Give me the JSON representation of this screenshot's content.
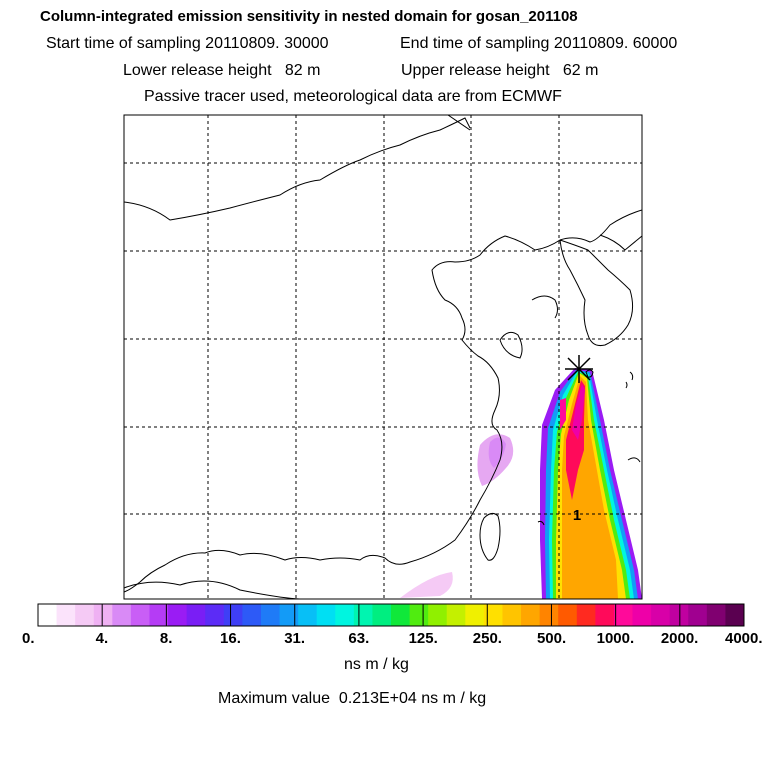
{
  "header": {
    "title": "Column-integrated emission sensitivity in nested domain for gosan_201108",
    "start_time": "Start time of sampling 20110809. 30000",
    "end_time": "End time of sampling 20110809. 60000",
    "lower_release": "Lower release height   82 m",
    "upper_release": "Upper release height   62 m",
    "tracer_note": "Passive tracer used, meteorological data are from ECMWF"
  },
  "map": {
    "release_marker_label": "1",
    "colors": {
      "coast": "#000000",
      "grid": "#000000"
    }
  },
  "colorbar": {
    "tick_labels": [
      "0.",
      "4.",
      "8.",
      "16.",
      "31.",
      "63.",
      "125.",
      "250.",
      "500.",
      "1000.",
      "2000.",
      "4000."
    ],
    "colors": [
      "#ffffff",
      "#fbe3fb",
      "#f5caf5",
      "#efb1f3",
      "#d98af6",
      "#c95ef6",
      "#b53cf5",
      "#9a1cf4",
      "#7a1ef5",
      "#5c2cf6",
      "#3f3ff6",
      "#2d5af7",
      "#1f7bf7",
      "#139bf7",
      "#08bff6",
      "#00dff3",
      "#00f5e0",
      "#00f5b0",
      "#00ee80",
      "#10e83a",
      "#50ec10",
      "#90f000",
      "#c4f000",
      "#f0f000",
      "#ffe000",
      "#ffc400",
      "#ffa600",
      "#ff8400",
      "#ff5a00",
      "#ff2a20",
      "#ff0a5a",
      "#ff0a9a",
      "#ee00a8",
      "#d800a8",
      "#c000a0",
      "#a00090",
      "#800070",
      "#5a0050"
    ],
    "unit": "ns m / kg",
    "max_value_text": "Maximum value  0.213E+04 ns m / kg"
  }
}
